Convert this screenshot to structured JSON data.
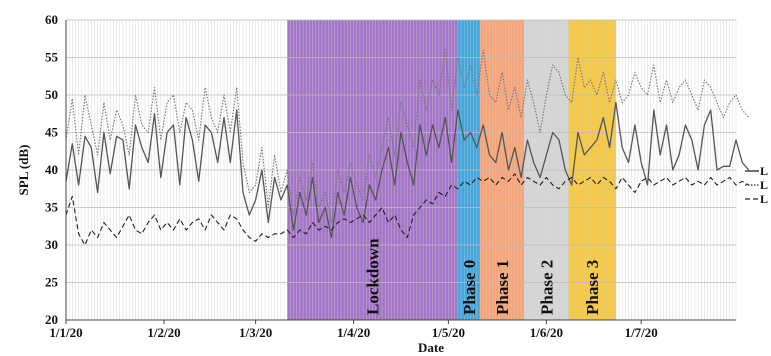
{
  "chart_data": {
    "type": "line",
    "xlabel": "Date",
    "ylabel": "SPL (dB)",
    "ylim": [
      20,
      60
    ],
    "yticks": [
      20,
      25,
      30,
      35,
      40,
      45,
      50,
      55,
      60
    ],
    "x_range": [
      "2020-01-01",
      "2020-07-31"
    ],
    "x_ticks": [
      {
        "date": "2020-01-01",
        "label": "1/1/20"
      },
      {
        "date": "2020-02-01",
        "label": "1/2/20"
      },
      {
        "date": "2020-03-01",
        "label": "1/3/20"
      },
      {
        "date": "2020-04-01",
        "label": "1/4/20"
      },
      {
        "date": "2020-05-01",
        "label": "1/5/20"
      },
      {
        "date": "2020-06-01",
        "label": "1/6/20"
      },
      {
        "date": "2020-07-01",
        "label": "1/7/20"
      }
    ],
    "grid": {
      "vertical_daily": true,
      "horizontal": true
    },
    "phases": [
      {
        "label": "Lockdown",
        "start": "2020-03-11",
        "end": "2020-05-04",
        "color": "#a374c8"
      },
      {
        "label": "Phase 0",
        "start": "2020-05-04",
        "end": "2020-05-11",
        "color": "#3fa7dd"
      },
      {
        "label": "Phase 1",
        "start": "2020-05-11",
        "end": "2020-05-25",
        "color": "#f7a476"
      },
      {
        "label": "Phase 2",
        "start": "2020-05-25",
        "end": "2020-06-08",
        "color": "#d6d6d6"
      },
      {
        "label": "Phase 3",
        "start": "2020-06-08",
        "end": "2020-06-23",
        "color": "#f7c940"
      }
    ],
    "legend": {
      "placement": "right",
      "entries": [
        {
          "label": "L",
          "style": "solid"
        },
        {
          "label": "L",
          "style": "dotted"
        },
        {
          "label": "L",
          "style": "dashed"
        }
      ]
    },
    "series": [
      {
        "style": "solid",
        "start": "2020-01-01",
        "step_days": 2,
        "values": [
          38.5,
          43.5,
          38,
          44.5,
          43,
          37,
          45,
          39.5,
          44.5,
          44,
          37.5,
          46,
          43,
          41,
          47.5,
          39,
          45,
          46,
          38,
          47,
          44,
          38.5,
          46,
          45,
          41,
          47,
          41,
          48,
          37,
          34,
          36,
          40,
          33,
          39,
          36,
          38,
          32,
          37,
          34,
          39,
          33,
          35,
          31,
          37,
          34,
          39,
          35,
          33,
          38,
          36,
          40,
          43,
          38,
          45,
          41,
          38,
          46,
          42,
          46,
          43,
          47,
          41,
          48,
          44,
          45,
          43,
          46,
          42,
          41,
          45,
          40,
          43,
          39,
          44,
          41,
          39,
          42,
          45,
          44,
          40,
          38,
          45,
          42,
          43,
          44,
          47,
          43,
          49,
          43,
          41,
          46,
          41,
          38,
          48,
          42,
          46,
          40,
          42,
          46,
          44,
          40,
          46,
          48,
          40,
          40.5,
          40.5,
          44,
          41,
          40
        ]
      },
      {
        "style": "dotted",
        "start": "2020-01-01",
        "step_days": 2,
        "values": [
          44,
          49.5,
          42,
          50,
          46,
          42,
          49,
          44,
          48,
          46,
          42,
          50,
          46,
          45,
          51,
          44,
          49,
          50,
          45,
          49,
          48,
          44,
          51,
          47,
          45,
          50,
          45,
          51,
          41,
          37,
          38,
          43,
          35,
          42,
          37,
          40,
          34,
          39,
          36,
          41,
          35,
          37,
          33,
          40,
          37,
          41,
          38,
          36,
          42,
          39,
          43,
          47,
          42,
          49,
          46,
          43,
          52,
          48,
          52,
          50,
          56,
          48,
          55,
          51,
          54,
          50,
          56,
          50,
          49,
          53,
          48,
          51,
          47,
          52,
          49,
          45,
          50,
          54,
          53,
          50,
          49,
          55,
          51,
          52,
          50,
          53,
          49,
          52,
          49,
          50,
          53,
          51,
          50,
          54,
          49,
          52,
          49,
          51,
          52,
          50,
          48,
          52,
          51,
          49,
          47,
          49,
          50,
          48,
          47
        ]
      },
      {
        "style": "dashed",
        "start": "2020-01-01",
        "step_days": 2,
        "values": [
          34,
          36.5,
          31.5,
          30,
          32,
          31,
          33,
          32,
          31,
          32.5,
          34,
          32,
          31.5,
          33,
          34,
          32,
          33,
          32,
          33.5,
          32,
          33,
          33.5,
          32,
          34,
          33,
          32,
          34,
          33.5,
          32,
          31,
          30.5,
          31.5,
          31,
          31.5,
          31.5,
          32,
          31,
          32,
          31.5,
          33,
          32,
          32.5,
          32,
          33,
          33.5,
          33,
          33.5,
          34,
          33,
          34,
          35,
          33,
          34,
          32,
          31,
          34,
          35,
          36,
          35.5,
          37,
          36.5,
          38,
          37.5,
          38.5,
          38,
          39,
          38.5,
          39,
          38,
          39,
          38.5,
          39.5,
          38,
          39,
          38.5,
          38,
          39,
          38,
          37.5,
          38.5,
          39,
          38,
          38.5,
          39,
          38,
          39,
          38.5,
          37.5,
          39,
          38,
          37,
          38.5,
          39,
          38,
          38.5,
          39,
          38,
          38.5,
          39,
          38,
          38.5,
          38,
          39,
          38,
          38.5,
          39,
          38,
          38.5,
          38
        ]
      }
    ]
  }
}
